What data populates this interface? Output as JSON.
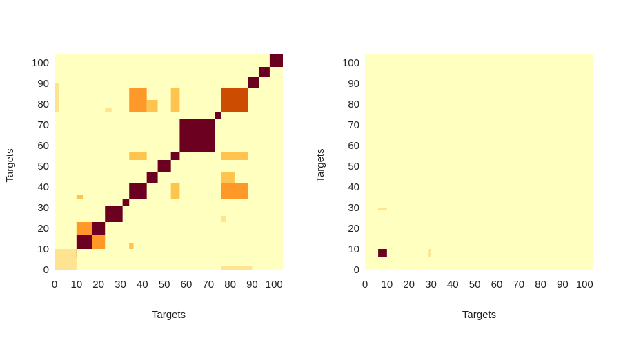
{
  "chart_data": [
    {
      "type": "heatmap",
      "xlabel": "Targets",
      "ylabel": "Targets",
      "xlim": [
        0,
        104
      ],
      "ylim": [
        0,
        104
      ],
      "xticks": [
        0,
        10,
        20,
        30,
        40,
        50,
        60,
        70,
        80,
        90,
        100
      ],
      "yticks": [
        0,
        10,
        20,
        30,
        40,
        50,
        60,
        70,
        80,
        90,
        100
      ],
      "grid": false,
      "colormap": [
        "#ffffbf",
        "#fee391",
        "#fec44f",
        "#fe9929",
        "#ec7014",
        "#cc4c02",
        "#8c2d04",
        "#6b0021"
      ],
      "background_value": 0,
      "blocks": [
        {
          "x0": 0,
          "x1": 6,
          "y0": 0,
          "y1": 6,
          "value": 1
        },
        {
          "x0": 6,
          "x1": 10,
          "y0": 6,
          "y1": 10,
          "value": 1
        },
        {
          "x0": 10,
          "x1": 17,
          "y0": 10,
          "y1": 17,
          "value": 1
        },
        {
          "x0": 17,
          "x1": 23,
          "y0": 17,
          "y1": 23,
          "value": 1
        },
        {
          "x0": 23,
          "x1": 31,
          "y0": 23,
          "y1": 31,
          "value": 1
        },
        {
          "x0": 31,
          "x1": 34,
          "y0": 31,
          "y1": 34,
          "value": 1
        },
        {
          "x0": 34,
          "x1": 42,
          "y0": 34,
          "y1": 42,
          "value": 1
        },
        {
          "x0": 42,
          "x1": 47,
          "y0": 42,
          "y1": 47,
          "value": 1
        },
        {
          "x0": 47,
          "x1": 53,
          "y0": 47,
          "y1": 53,
          "value": 1
        },
        {
          "x0": 53,
          "x1": 57,
          "y0": 53,
          "y1": 57,
          "value": 1
        },
        {
          "x0": 57,
          "x1": 73,
          "y0": 57,
          "y1": 73,
          "value": 1
        },
        {
          "x0": 73,
          "x1": 76,
          "y0": 73,
          "y1": 76,
          "value": 1
        },
        {
          "x0": 76,
          "x1": 88,
          "y0": 76,
          "y1": 88,
          "value": 0.65
        },
        {
          "x0": 88,
          "x1": 93,
          "y0": 88,
          "y1": 93,
          "value": 1
        },
        {
          "x0": 93,
          "x1": 98,
          "y0": 93,
          "y1": 98,
          "value": 1
        },
        {
          "x0": 98,
          "x1": 104,
          "y0": 98,
          "y1": 104,
          "value": 1
        },
        {
          "x0": 34,
          "x1": 42,
          "y0": 76,
          "y1": 88,
          "value": 0.4
        },
        {
          "x0": 76,
          "x1": 88,
          "y0": 34,
          "y1": 42,
          "value": 0.4
        },
        {
          "x0": 34,
          "x1": 42,
          "y0": 53,
          "y1": 57,
          "value": 0.35
        },
        {
          "x0": 53,
          "x1": 57,
          "y0": 34,
          "y1": 42,
          "value": 0.35
        },
        {
          "x0": 10,
          "x1": 17,
          "y0": 17,
          "y1": 23,
          "value": 0.45
        },
        {
          "x0": 17,
          "x1": 23,
          "y0": 10,
          "y1": 17,
          "value": 0.45
        },
        {
          "x0": 0,
          "x1": 10,
          "y0": 0,
          "y1": 10,
          "value": 0.15
        },
        {
          "x0": 10,
          "x1": 13,
          "y0": 34,
          "y1": 36,
          "value": 0.3
        },
        {
          "x0": 34,
          "x1": 36,
          "y0": 10,
          "y1": 13,
          "value": 0.3
        },
        {
          "x0": 42,
          "x1": 47,
          "y0": 76,
          "y1": 82,
          "value": 0.3
        },
        {
          "x0": 76,
          "x1": 82,
          "y0": 42,
          "y1": 47,
          "value": 0.3
        },
        {
          "x0": 53,
          "x1": 57,
          "y0": 76,
          "y1": 88,
          "value": 0.25
        },
        {
          "x0": 76,
          "x1": 88,
          "y0": 53,
          "y1": 57,
          "value": 0.25
        },
        {
          "x0": 23,
          "x1": 26,
          "y0": 76,
          "y1": 78,
          "value": 0.15
        },
        {
          "x0": 76,
          "x1": 78,
          "y0": 23,
          "y1": 26,
          "value": 0.15
        },
        {
          "x0": 0,
          "x1": 2,
          "y0": 76,
          "y1": 90,
          "value": 0.12
        },
        {
          "x0": 76,
          "x1": 90,
          "y0": 0,
          "y1": 2,
          "value": 0.12
        }
      ]
    },
    {
      "type": "heatmap",
      "xlabel": "Targets",
      "ylabel": "Targets",
      "xlim": [
        0,
        104
      ],
      "ylim": [
        0,
        104
      ],
      "xticks": [
        0,
        10,
        20,
        30,
        40,
        50,
        60,
        70,
        80,
        90,
        100
      ],
      "yticks": [
        0,
        10,
        20,
        30,
        40,
        50,
        60,
        70,
        80,
        90,
        100
      ],
      "grid": false,
      "colormap": [
        "#ffffbf",
        "#fee391",
        "#fec44f",
        "#fe9929",
        "#ec7014",
        "#cc4c02",
        "#8c2d04",
        "#6b0021"
      ],
      "background_value": 0,
      "blocks": [
        {
          "x0": 6,
          "x1": 10,
          "y0": 6,
          "y1": 10,
          "value": 1
        },
        {
          "x0": 6,
          "x1": 10,
          "y0": 29,
          "y1": 30,
          "value": 0.08
        },
        {
          "x0": 29,
          "x1": 30,
          "y0": 6,
          "y1": 10,
          "value": 0.08
        }
      ]
    }
  ]
}
